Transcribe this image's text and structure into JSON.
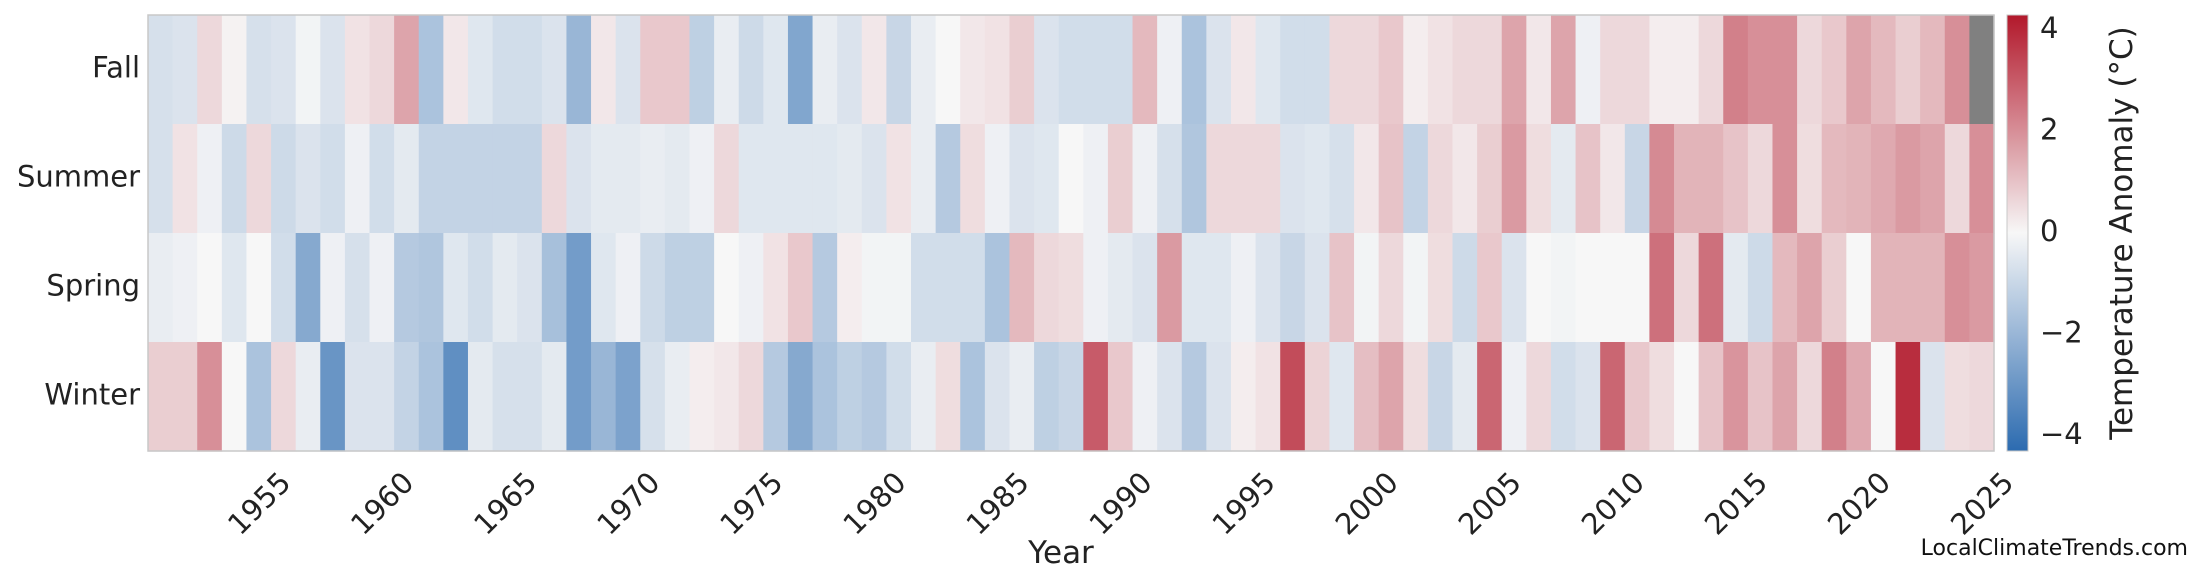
{
  "chart_data": {
    "type": "heatmap",
    "title": "",
    "xlabel": "Year",
    "ylabel": "",
    "rows": [
      "Fall",
      "Summer",
      "Spring",
      "Winter"
    ],
    "x_start_year": 1950,
    "x_end_year": 2024,
    "x_ticks": [
      1955,
      1960,
      1965,
      1970,
      1975,
      1980,
      1985,
      1990,
      1995,
      2000,
      2005,
      2010,
      2015,
      2020,
      2025
    ],
    "x_tick_labels": [
      "1955",
      "1960",
      "1965",
      "1970",
      "1975",
      "1980",
      "1985",
      "1990",
      "1995",
      "2000",
      "2005",
      "2010",
      "2015",
      "2020",
      "2025"
    ],
    "colorbar": {
      "label": "Temperature Anomaly (°C)",
      "range": [
        -4.3,
        4.3
      ],
      "ticks": [
        -4,
        -2,
        0,
        2,
        4
      ],
      "tick_labels": [
        "−4",
        "−2",
        "0",
        "2",
        "4"
      ],
      "colors": {
        "min": "#2c6bb0",
        "mid": "#f7f7f7",
        "max": "#b2182b"
      }
    },
    "missing_color": "#808080",
    "grid": false,
    "values": {
      "Fall": [
        -0.7,
        -0.6,
        0.6,
        0.1,
        -0.7,
        -0.6,
        -0.1,
        -0.6,
        0.4,
        0.6,
        1.6,
        -1.6,
        0.3,
        -0.5,
        -0.8,
        -0.8,
        -0.6,
        -2.0,
        0.3,
        -0.6,
        0.9,
        0.9,
        -1.2,
        -0.3,
        -0.9,
        -0.5,
        -2.5,
        -0.3,
        -0.6,
        0.3,
        -1.0,
        -0.3,
        0.0,
        0.3,
        0.4,
        0.8,
        -0.6,
        -0.8,
        -0.8,
        -0.8,
        1.2,
        -0.2,
        -1.6,
        -0.6,
        0.3,
        -0.5,
        -0.8,
        -0.8,
        0.6,
        0.6,
        0.9,
        0.2,
        0.4,
        0.6,
        0.6,
        1.6,
        0.3,
        1.6,
        -0.2,
        0.6,
        0.6,
        0.2,
        0.2,
        0.6,
        2.3,
        2.0,
        2.0,
        0.6,
        0.9,
        1.6,
        1.2,
        0.8,
        1.2,
        2.0,
        null
      ],
      "Summer": [
        -0.7,
        0.4,
        -0.2,
        -0.9,
        0.6,
        -0.9,
        -0.6,
        -0.8,
        -0.2,
        -0.8,
        -0.4,
        -1.1,
        -1.1,
        -1.1,
        -1.1,
        -1.1,
        0.6,
        -0.6,
        -0.4,
        -0.4,
        -0.3,
        -0.4,
        -0.2,
        0.6,
        -0.5,
        -0.5,
        -0.5,
        -0.5,
        -0.4,
        -0.6,
        0.4,
        -0.3,
        -1.4,
        0.5,
        -0.2,
        -0.6,
        -0.5,
        0.0,
        -0.2,
        0.8,
        -0.2,
        -0.7,
        -1.5,
        0.6,
        0.6,
        0.6,
        -0.6,
        -0.5,
        -0.7,
        0.3,
        1.0,
        -1.1,
        0.6,
        0.3,
        0.8,
        1.8,
        0.5,
        -0.4,
        1.0,
        0.3,
        -1.0,
        2.1,
        1.3,
        1.3,
        1.0,
        0.6,
        2.0,
        0.5,
        1.2,
        1.3,
        1.5,
        1.8,
        1.6,
        0.6,
        2.0
      ],
      "Spring": [
        -0.3,
        -0.2,
        0.0,
        -0.5,
        0.0,
        -0.8,
        -2.4,
        -0.2,
        -0.7,
        -0.2,
        -1.4,
        -1.5,
        -0.5,
        -0.8,
        -0.4,
        -0.6,
        -1.7,
        -2.8,
        -0.5,
        -0.2,
        -0.9,
        -1.2,
        -1.2,
        0.0,
        -0.2,
        0.4,
        0.9,
        -1.4,
        0.2,
        -0.1,
        -0.1,
        -0.8,
        -0.8,
        -0.8,
        -1.6,
        1.2,
        0.6,
        0.5,
        -0.2,
        -0.4,
        -0.6,
        1.8,
        -0.5,
        -0.5,
        -0.2,
        -0.6,
        -1.0,
        -0.6,
        1.0,
        -0.1,
        0.6,
        -0.1,
        0.5,
        -0.9,
        0.9,
        -0.6,
        0.0,
        -0.1,
        0.0,
        0.0,
        0.0,
        2.6,
        0.6,
        2.6,
        -0.4,
        -0.9,
        1.2,
        1.6,
        0.8,
        0.0,
        1.3,
        1.3,
        1.3,
        2.0,
        1.8
      ],
      "Winter": [
        0.8,
        0.8,
        2.0,
        0.0,
        -1.6,
        0.6,
        -0.3,
        -3.0,
        -0.6,
        -0.6,
        -1.1,
        -1.6,
        -3.2,
        -0.4,
        -0.7,
        -0.7,
        -0.4,
        -2.8,
        -2.0,
        -2.6,
        -0.7,
        -0.3,
        0.2,
        0.3,
        0.6,
        -1.4,
        -2.4,
        -1.6,
        -1.2,
        -1.4,
        -0.8,
        -0.3,
        0.5,
        -1.6,
        -0.6,
        -0.3,
        -1.2,
        -1.0,
        3.0,
        0.9,
        -0.2,
        -0.6,
        -1.4,
        -0.6,
        0.2,
        0.4,
        3.3,
        0.7,
        -0.5,
        1.1,
        1.6,
        0.5,
        -1.0,
        -0.4,
        2.8,
        -0.2,
        0.6,
        -0.8,
        -0.6,
        2.8,
        0.9,
        0.5,
        0.0,
        1.0,
        1.9,
        1.0,
        1.6,
        0.6,
        2.3,
        1.5,
        0.0,
        3.9,
        -0.6,
        0.5,
        0.6
      ]
    }
  },
  "watermark": "LocalClimateTrends.com"
}
